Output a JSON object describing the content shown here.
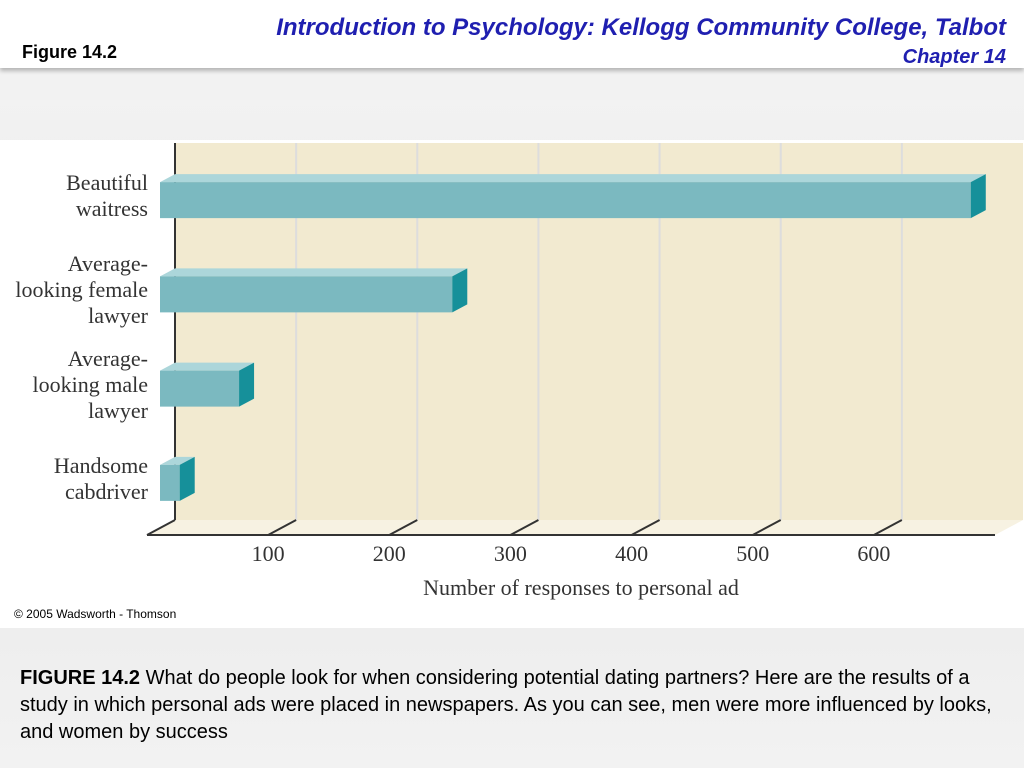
{
  "header": {
    "title": "Introduction to Psychology: Kellogg Community College, Talbot",
    "subtitle": "Chapter 14",
    "figure_label": "Figure 14.2"
  },
  "chart_data": {
    "type": "bar",
    "orientation": "horizontal",
    "categories": [
      "Beautiful\nwaitress",
      "Average-\nlooking female\nlawyer",
      "Average-\nlooking male\nlawyer",
      "Handsome\ncabdriver"
    ],
    "values": [
      680,
      252,
      76,
      27
    ],
    "color": "#7bb9c0",
    "x_label": "Number of responses to personal ad",
    "xlim": [
      0,
      700
    ],
    "xticks": [
      100,
      200,
      300,
      400,
      500,
      600
    ],
    "grid": true
  },
  "copyright": "© 2005 Wadsworth - Thomson",
  "caption": {
    "lead": "FIGURE 14.2",
    "text": "What do people look for when considering potential dating partners? Here are the results of a study in which personal ads were placed in newspapers. As you can see, men were more influenced by looks, and women by success"
  }
}
